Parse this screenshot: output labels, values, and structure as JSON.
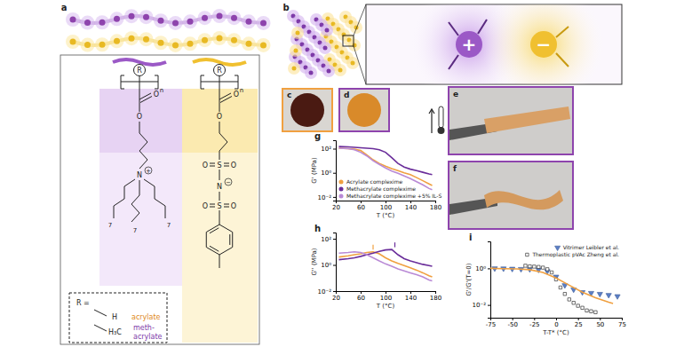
{
  "panel_labels": [
    "a",
    "b",
    "c",
    "d",
    "e",
    "f"
  ],
  "structure": {
    "r": "R",
    "n": "n",
    "o": "O",
    "n_atom": "N",
    "s": "S",
    "chain": "7",
    "plus": "+",
    "minus": "−",
    "r_def": "R =",
    "h": "H",
    "acrylate": "acrylate",
    "h3c": "H₃C",
    "methacrylate": [
      "meth-",
      "acrylate"
    ]
  },
  "chart_data": [
    {
      "type": "line",
      "title": "g",
      "x_label": "T (°C)",
      "y_label": "G' (MPa)",
      "log": "y",
      "legend": "lower left",
      "xlim": [
        20,
        180
      ],
      "xticks": [
        20,
        60,
        100,
        140,
        180
      ],
      "ylim": [
        0.005,
        500
      ],
      "yticks": [
        {
          "value": 0.01,
          "label": "10⁻²"
        },
        {
          "value": 1,
          "label": "10⁰"
        },
        {
          "value": 100,
          "label": "10²"
        }
      ],
      "x": [
        25,
        40,
        50,
        60,
        70,
        80,
        90,
        100,
        110,
        120,
        130,
        140,
        150,
        160,
        170,
        175
      ],
      "series": [
        {
          "name": "Acrylate complexime",
          "color": "#f0a040",
          "values": [
            110,
            100,
            90,
            70,
            30,
            12,
            6,
            3.5,
            2.2,
            1.5,
            1.0,
            0.7,
            0.4,
            0.22,
            0.12,
            0.09
          ]
        },
        {
          "name": "Methacrylate complexime",
          "color": "#6a2d9a",
          "values": [
            150,
            140,
            130,
            120,
            110,
            100,
            80,
            50,
            18,
            6,
            3,
            2,
            1.5,
            1.1,
            0.8,
            0.7
          ]
        },
        {
          "name": "Methacrylate complexime +5% IL-S",
          "color": "#b98ad6",
          "values": [
            110,
            100,
            80,
            50,
            25,
            10,
            5,
            2.5,
            1.4,
            0.9,
            0.55,
            0.33,
            0.18,
            0.1,
            0.05,
            0.04
          ]
        }
      ]
    },
    {
      "type": "line",
      "title": "h",
      "x_label": "T (°C)",
      "y_label": "G'' (MPa)",
      "log": "y",
      "xlim": [
        20,
        180
      ],
      "xticks": [
        20,
        60,
        100,
        140,
        180
      ],
      "ylim": [
        0.01,
        300
      ],
      "yticks": [
        {
          "value": 0.01,
          "label": "10⁻²"
        },
        {
          "value": 1,
          "label": "10⁰"
        },
        {
          "value": 100,
          "label": "10²"
        }
      ],
      "x": [
        25,
        40,
        50,
        60,
        70,
        80,
        90,
        100,
        110,
        120,
        130,
        140,
        150,
        160,
        170,
        175
      ],
      "series": [
        {
          "color": "#f0a040",
          "values": [
            4,
            5,
            6,
            7,
            9,
            10,
            7,
            3.5,
            2,
            1.3,
            0.9,
            0.6,
            0.4,
            0.25,
            0.15,
            0.12
          ],
          "peak_x": 80,
          "peak_y": 10
        },
        {
          "color": "#6a2d9a",
          "values": [
            2.5,
            3,
            3.5,
            4.5,
            6,
            8,
            11,
            14,
            15,
            6,
            3,
            2,
            1.5,
            1.1,
            0.9,
            0.8
          ],
          "peak_x": 115,
          "peak_y": 15
        },
        {
          "color": "#b98ad6",
          "values": [
            8,
            9,
            10,
            9,
            6,
            3.5,
            2,
            1.2,
            0.8,
            0.5,
            0.35,
            0.25,
            0.18,
            0.12,
            0.07,
            0.06
          ]
        }
      ]
    },
    {
      "type": "scatter",
      "title": "i",
      "x_label": "T-T* (°C)",
      "y_label": "G'/G'(T=0)",
      "log": "y",
      "legend": "upper right",
      "xlim": [
        -75,
        75
      ],
      "xticks": [
        -75,
        -50,
        -25,
        0,
        25,
        50,
        75
      ],
      "ylim": [
        0.002,
        30
      ],
      "yticks": [
        {
          "value": 0.01,
          "label": "10⁻²"
        },
        {
          "value": 1,
          "label": "10⁰"
        }
      ],
      "series": [
        {
          "name": "Vitrimer Leibler et al.",
          "type": "scatter",
          "marker": "triangle-down",
          "color": "#5b7fc7",
          "x": [
            -70,
            -60,
            -50,
            -40,
            -30,
            -20,
            -10,
            0,
            10,
            20,
            30,
            40,
            50,
            60,
            70
          ],
          "values": [
            1.0,
            0.98,
            0.95,
            0.92,
            0.9,
            0.85,
            0.7,
            0.35,
            0.12,
            0.07,
            0.05,
            0.045,
            0.04,
            0.035,
            0.03
          ]
        },
        {
          "name": "Thermoplastic pVAc Zheng et al.",
          "type": "scatter",
          "marker": "square-open",
          "color": "#333333",
          "x": [
            -35,
            -30,
            -25,
            -20,
            -15,
            -10,
            -5,
            0,
            5,
            10,
            15,
            20,
            25,
            30,
            35,
            40,
            45
          ],
          "values": [
            1.4,
            1.3,
            1.25,
            1.2,
            1.1,
            0.9,
            0.6,
            0.25,
            0.09,
            0.04,
            0.02,
            0.013,
            0.009,
            0.007,
            0.005,
            0.0045,
            0.004
          ]
        },
        {
          "type": "line",
          "color": "#f0a040",
          "x": [
            -75,
            -60,
            -45,
            -30,
            -15,
            0,
            15,
            30,
            45,
            60,
            65
          ],
          "values": [
            1.0,
            0.97,
            0.93,
            0.85,
            0.6,
            0.3,
            0.12,
            0.05,
            0.025,
            0.014,
            0.012
          ]
        }
      ]
    }
  ]
}
